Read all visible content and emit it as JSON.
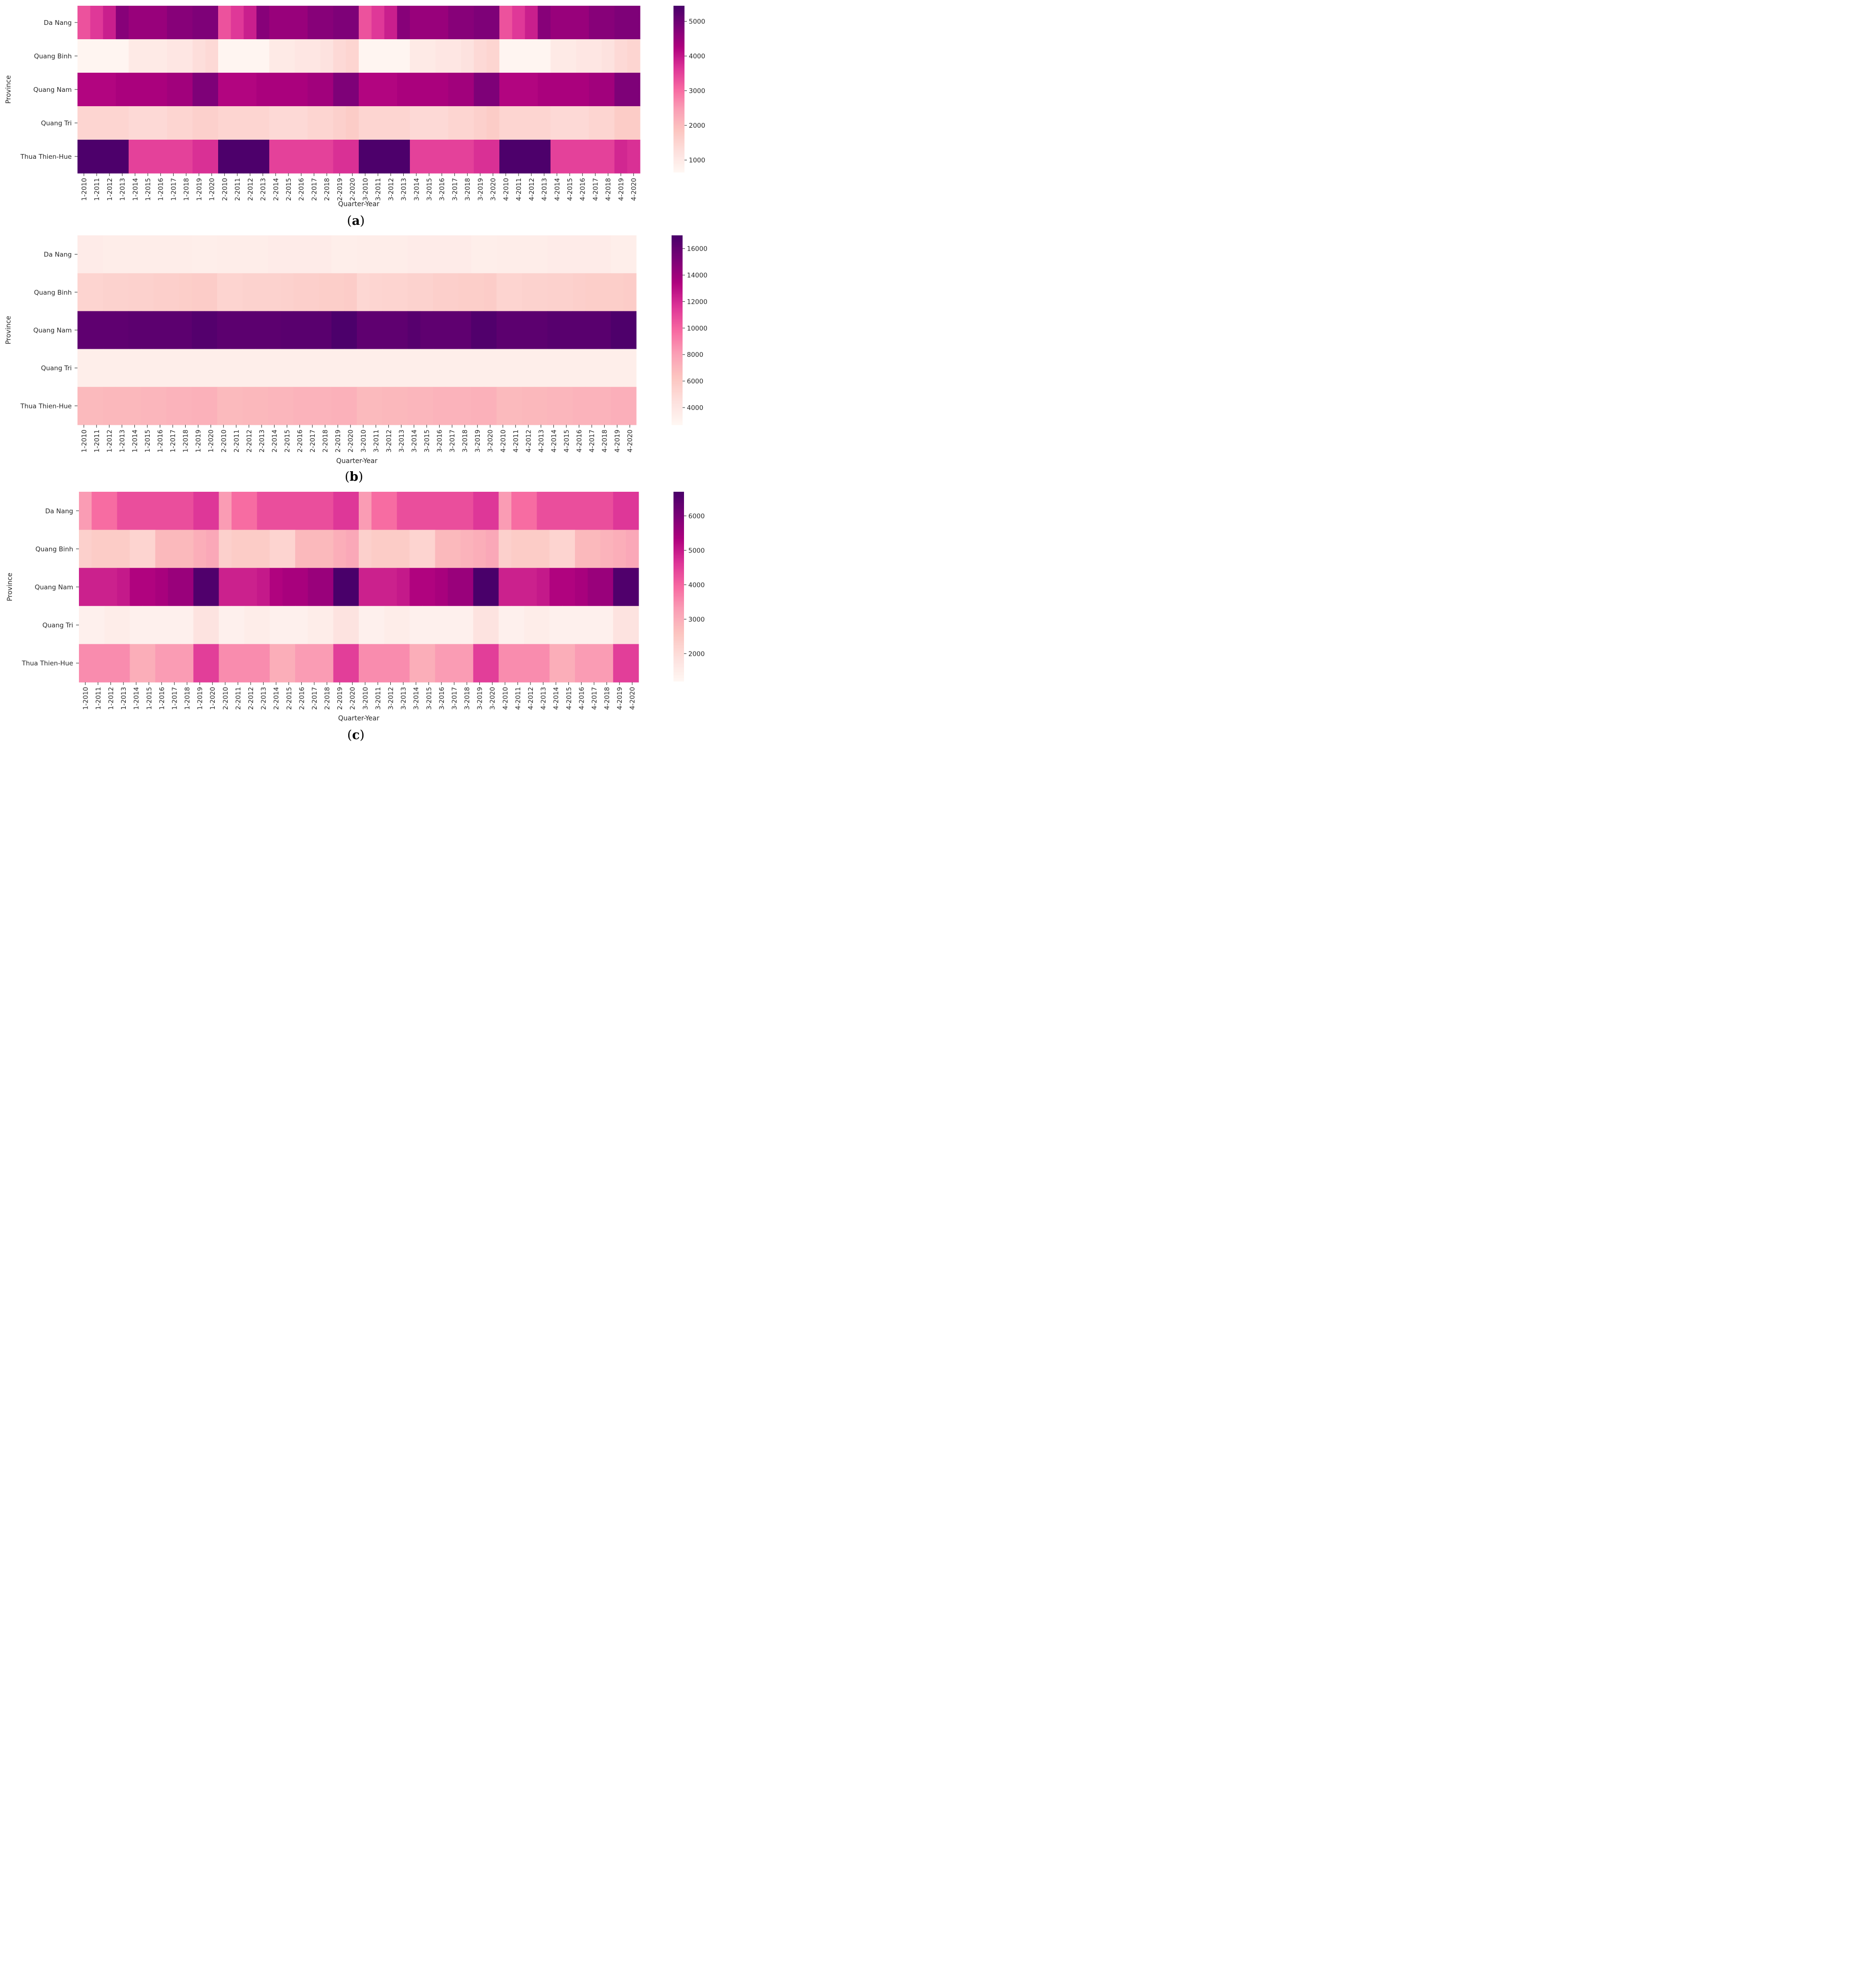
{
  "colors": {
    "text": "#262626",
    "background": "#ffffff"
  },
  "chart_data": [
    {
      "type": "heatmap",
      "panel_label": "a",
      "xlabel": "Quarter-Year",
      "ylabel": "Province",
      "colorscale": "RdPu",
      "vmin": 650,
      "vmax": 5450,
      "colorbar_ticks": [
        1000,
        2000,
        3000,
        4000,
        5000
      ],
      "categories": [
        "1-2010",
        "1-2011",
        "1-2012",
        "1-2013",
        "1-2014",
        "1-2015",
        "1-2016",
        "1-2017",
        "1-2018",
        "1-2019",
        "1-2020",
        "2-2010",
        "2-2011",
        "2-2012",
        "2-2013",
        "2-2014",
        "2-2015",
        "2-2016",
        "2-2017",
        "2-2018",
        "2-2019",
        "2-2020",
        "3-2010",
        "3-2011",
        "3-2012",
        "3-2013",
        "3-2014",
        "3-2015",
        "3-2016",
        "3-2017",
        "3-2018",
        "3-2019",
        "3-2020",
        "4-2010",
        "4-2011",
        "4-2012",
        "4-2013",
        "4-2014",
        "4-2015",
        "4-2016",
        "4-2017",
        "4-2018",
        "4-2019",
        "4-2020"
      ],
      "rows": [
        "Da Nang",
        "Quang Binh",
        "Quang Nam",
        "Quang Tri",
        "Thua Thien-Hue"
      ],
      "values": [
        [
          3300,
          3600,
          3900,
          4700,
          4500,
          4500,
          4500,
          4700,
          4700,
          4800,
          4800,
          3300,
          3600,
          3900,
          4700,
          4500,
          4500,
          4500,
          4700,
          4700,
          4800,
          4800,
          3300,
          3600,
          3900,
          4700,
          4500,
          4500,
          4500,
          4700,
          4700,
          4800,
          4800,
          3300,
          3600,
          3900,
          4700,
          4500,
          4500,
          4500,
          4700,
          4700,
          4800,
          4800
        ],
        [
          700,
          700,
          700,
          700,
          1000,
          1000,
          1000,
          1100,
          1100,
          1300,
          1400,
          700,
          700,
          700,
          700,
          1000,
          1000,
          1100,
          1100,
          1200,
          1400,
          1500,
          700,
          700,
          700,
          700,
          1000,
          1000,
          1100,
          1100,
          1200,
          1400,
          1500,
          700,
          700,
          700,
          700,
          1000,
          1000,
          1100,
          1100,
          1200,
          1400,
          1500
        ],
        [
          4200,
          4200,
          4200,
          4300,
          4300,
          4300,
          4300,
          4400,
          4400,
          4800,
          4800,
          4200,
          4200,
          4200,
          4300,
          4300,
          4300,
          4300,
          4400,
          4400,
          4800,
          4800,
          4200,
          4200,
          4200,
          4300,
          4300,
          4300,
          4300,
          4400,
          4400,
          4800,
          4800,
          4200,
          4200,
          4200,
          4300,
          4300,
          4300,
          4300,
          4400,
          4400,
          4800,
          4800
        ],
        [
          1500,
          1500,
          1500,
          1500,
          1400,
          1400,
          1400,
          1500,
          1500,
          1600,
          1600,
          1500,
          1500,
          1500,
          1500,
          1400,
          1400,
          1400,
          1500,
          1500,
          1600,
          1700,
          1500,
          1500,
          1500,
          1500,
          1400,
          1400,
          1400,
          1500,
          1500,
          1600,
          1700,
          1500,
          1500,
          1500,
          1500,
          1400,
          1400,
          1400,
          1500,
          1500,
          1700,
          1700
        ],
        [
          5400,
          5400,
          5400,
          5400,
          3500,
          3500,
          3500,
          3500,
          3500,
          3700,
          3700,
          5400,
          5400,
          5400,
          5400,
          3500,
          3500,
          3500,
          3500,
          3500,
          3700,
          3700,
          5400,
          5400,
          5400,
          5400,
          3500,
          3500,
          3500,
          3500,
          3500,
          3700,
          3700,
          5400,
          5400,
          5400,
          5400,
          3500,
          3500,
          3500,
          3500,
          3500,
          3800,
          3700
        ]
      ]
    },
    {
      "type": "heatmap",
      "panel_label": "b",
      "xlabel": "Quarter-Year",
      "ylabel": "Province",
      "colorscale": "RdPu",
      "vmin": 2700,
      "vmax": 17000,
      "colorbar_ticks": [
        4000,
        6000,
        8000,
        10000,
        12000,
        14000,
        16000
      ],
      "categories": [
        "1-2010",
        "1-2011",
        "1-2012",
        "1-2013",
        "1-2014",
        "1-2015",
        "1-2016",
        "1-2017",
        "1-2018",
        "1-2019",
        "1-2020",
        "2-2010",
        "2-2011",
        "2-2012",
        "2-2013",
        "2-2014",
        "2-2015",
        "2-2016",
        "2-2017",
        "2-2018",
        "2-2019",
        "2-2020",
        "3-2010",
        "3-2011",
        "3-2012",
        "3-2013",
        "3-2014",
        "3-2015",
        "3-2016",
        "3-2017",
        "3-2018",
        "3-2019",
        "3-2020",
        "4-2010",
        "4-2011",
        "4-2012",
        "4-2013",
        "4-2014",
        "4-2015",
        "4-2016",
        "4-2017",
        "4-2018",
        "4-2019",
        "4-2020"
      ],
      "rows": [
        "Da Nang",
        "Quang Binh",
        "Quang Nam",
        "Quang Tri",
        "Thua Thien-Hue"
      ],
      "values": [
        [
          3600,
          3600,
          3500,
          3500,
          3500,
          3500,
          3500,
          3500,
          3500,
          3400,
          3400,
          3500,
          3500,
          3500,
          3500,
          3600,
          3600,
          3600,
          3600,
          3600,
          3400,
          3400,
          3500,
          3500,
          3500,
          3500,
          3600,
          3600,
          3600,
          3600,
          3600,
          3400,
          3400,
          3500,
          3500,
          3500,
          3500,
          3600,
          3600,
          3600,
          3600,
          3600,
          3400,
          3400
        ],
        [
          5300,
          5300,
          5400,
          5400,
          5500,
          5500,
          5600,
          5600,
          5700,
          5800,
          5800,
          5300,
          5300,
          5400,
          5400,
          5400,
          5500,
          5600,
          5600,
          5700,
          5700,
          5800,
          5100,
          5200,
          5300,
          5300,
          5400,
          5400,
          5600,
          5600,
          5700,
          5700,
          5800,
          5300,
          5300,
          5400,
          5400,
          5500,
          5500,
          5600,
          5700,
          5700,
          5700,
          5800
        ],
        [
          16200,
          16200,
          16200,
          16200,
          16300,
          16300,
          16300,
          16300,
          16300,
          16600,
          16600,
          16300,
          16300,
          16300,
          16300,
          16300,
          16400,
          16400,
          16400,
          16400,
          16900,
          16900,
          16200,
          16200,
          16200,
          16200,
          16500,
          16200,
          16200,
          16200,
          16200,
          16700,
          16700,
          16300,
          16300,
          16300,
          16300,
          16500,
          16400,
          16400,
          16400,
          16400,
          16800,
          16800
        ],
        [
          3400,
          3400,
          3400,
          3400,
          3400,
          3400,
          3400,
          3400,
          3400,
          3400,
          3400,
          3400,
          3400,
          3400,
          3400,
          3400,
          3400,
          3400,
          3400,
          3400,
          3400,
          3400,
          3400,
          3400,
          3400,
          3400,
          3400,
          3400,
          3400,
          3400,
          3400,
          3400,
          3400,
          3400,
          3400,
          3400,
          3400,
          3400,
          3400,
          3400,
          3400,
          3400,
          3400,
          3400
        ],
        [
          6800,
          6800,
          6900,
          6900,
          6900,
          7000,
          7000,
          7100,
          7100,
          7200,
          7200,
          6800,
          6800,
          6900,
          6900,
          7000,
          7000,
          7100,
          7100,
          7100,
          7200,
          7200,
          6800,
          6800,
          6900,
          6900,
          7000,
          7000,
          7100,
          7100,
          7100,
          7200,
          7200,
          6800,
          6800,
          6900,
          6900,
          7000,
          7000,
          7100,
          7100,
          7100,
          7300,
          7300
        ]
      ]
    },
    {
      "type": "heatmap",
      "panel_label": "c",
      "xlabel": "Quarter-Year",
      "ylabel": "Province",
      "colorscale": "RdPu",
      "vmin": 1200,
      "vmax": 6700,
      "colorbar_ticks": [
        2000,
        3000,
        4000,
        5000,
        6000
      ],
      "categories": [
        "1-2010",
        "1-2011",
        "1-2012",
        "1-2013",
        "1-2014",
        "1-2015",
        "1-2016",
        "1-2017",
        "1-2018",
        "1-2019",
        "1-2020",
        "2-2010",
        "2-2011",
        "2-2012",
        "2-2013",
        "2-2014",
        "2-2015",
        "2-2016",
        "2-2017",
        "2-2018",
        "2-2019",
        "2-2020",
        "3-2010",
        "3-2011",
        "3-2012",
        "3-2013",
        "3-2014",
        "3-2015",
        "3-2016",
        "3-2017",
        "3-2018",
        "3-2019",
        "3-2020",
        "4-2010",
        "4-2011",
        "4-2012",
        "4-2013",
        "4-2014",
        "4-2015",
        "4-2016",
        "4-2017",
        "4-2018",
        "4-2019",
        "4-2020"
      ],
      "rows": [
        "Da Nang",
        "Quang Binh",
        "Quang Nam",
        "Quang Tri",
        "Thua Thien-Hue"
      ],
      "values": [
        [
          3300,
          3900,
          3900,
          4300,
          4300,
          4300,
          4300,
          4300,
          4300,
          4600,
          4600,
          3300,
          3900,
          3900,
          4300,
          4300,
          4300,
          4300,
          4300,
          4300,
          4600,
          4600,
          3300,
          3900,
          3900,
          4300,
          4300,
          4300,
          4300,
          4300,
          4300,
          4600,
          4600,
          3300,
          3900,
          3900,
          4300,
          4300,
          4300,
          4300,
          4300,
          4300,
          4600,
          4600
        ],
        [
          2300,
          2400,
          2400,
          2400,
          2200,
          2200,
          2800,
          2800,
          2800,
          3000,
          3100,
          2300,
          2400,
          2400,
          2400,
          2200,
          2200,
          2800,
          2800,
          2800,
          3000,
          3100,
          2300,
          2400,
          2400,
          2400,
          2200,
          2200,
          2800,
          2800,
          2900,
          3000,
          3100,
          2300,
          2400,
          2400,
          2400,
          2200,
          2200,
          2800,
          2800,
          2900,
          3000,
          3100
        ],
        [
          4900,
          4900,
          4900,
          5000,
          5300,
          5300,
          5400,
          5600,
          5600,
          6600,
          6600,
          4900,
          4900,
          4900,
          5000,
          5300,
          5400,
          5400,
          5600,
          5600,
          6700,
          6700,
          4900,
          4900,
          4900,
          5000,
          5300,
          5300,
          5400,
          5600,
          5600,
          6700,
          6700,
          4900,
          4900,
          4900,
          5000,
          5300,
          5300,
          5400,
          5600,
          5600,
          6600,
          6600
        ],
        [
          1400,
          1400,
          1500,
          1500,
          1400,
          1400,
          1400,
          1400,
          1400,
          1800,
          1800,
          1400,
          1400,
          1500,
          1500,
          1400,
          1400,
          1400,
          1500,
          1500,
          1800,
          1800,
          1400,
          1400,
          1500,
          1500,
          1400,
          1400,
          1400,
          1400,
          1400,
          1800,
          1800,
          1400,
          1400,
          1500,
          1500,
          1400,
          1400,
          1400,
          1400,
          1400,
          1800,
          1800
        ],
        [
          3500,
          3500,
          3500,
          3500,
          3000,
          3000,
          3300,
          3300,
          3300,
          4500,
          4500,
          3500,
          3500,
          3500,
          3500,
          3000,
          3000,
          3300,
          3300,
          3300,
          4500,
          4500,
          3500,
          3500,
          3500,
          3500,
          3000,
          3000,
          3300,
          3300,
          3300,
          4500,
          4500,
          3500,
          3500,
          3500,
          3500,
          3000,
          3000,
          3300,
          3300,
          3300,
          4500,
          4500
        ]
      ]
    }
  ]
}
